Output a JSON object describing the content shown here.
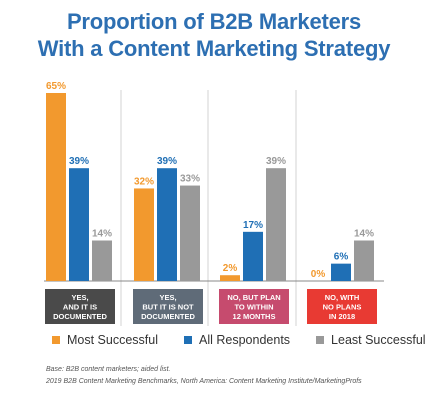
{
  "chart_data": {
    "type": "bar",
    "title_lines": [
      "Proportion of B2B Marketers",
      "With a Content Marketing Strategy"
    ],
    "categories": [
      [
        "YES,",
        "AND IT IS",
        "DOCUMENTED"
      ],
      [
        "YES,",
        "BUT IT IS NOT",
        "DOCUMENTED"
      ],
      [
        "NO, BUT PLAN",
        "TO WITHIN",
        "12 MONTHS"
      ],
      [
        "NO, WITH",
        "NO PLANS",
        "IN 2018"
      ]
    ],
    "category_colors": [
      "#4a4a4a",
      "#5f6b78",
      "#c64b6e",
      "#e83a33"
    ],
    "series": [
      {
        "name": "Most Successful",
        "color": "#f2992e",
        "values": [
          65,
          32,
          2,
          0
        ]
      },
      {
        "name": "All Respondents",
        "color": "#1f6fb5",
        "values": [
          39,
          39,
          17,
          6
        ]
      },
      {
        "name": "Least Successful",
        "color": "#999999",
        "values": [
          14,
          33,
          39,
          14
        ]
      }
    ],
    "value_suffix": "%",
    "ylim": [
      0,
      65
    ],
    "legend_position": "bottom",
    "grid": false
  },
  "notes": {
    "base": "Base: B2B content marketers; aided list.",
    "source": "2019 B2B Content Marketing Benchmarks, North America: Content Marketing Institute/MarketingProfs"
  }
}
